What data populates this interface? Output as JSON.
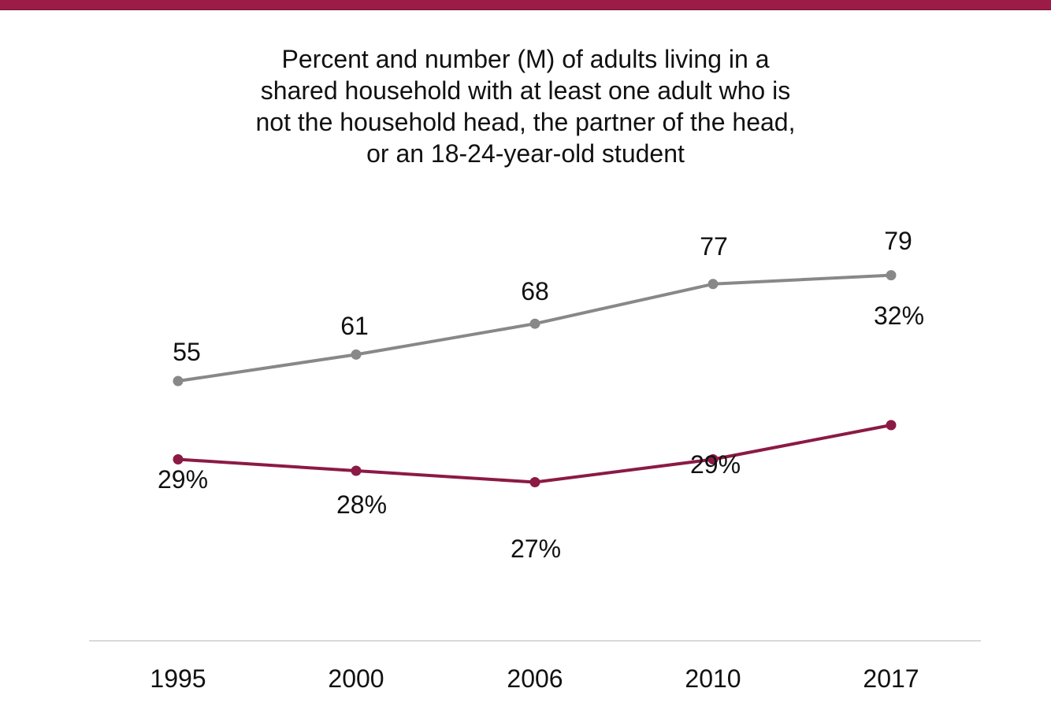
{
  "colors": {
    "accent": "#9c1c47",
    "percent_series": "#8b1a44",
    "number_series": "#888888",
    "axis": "#d9d9d9"
  },
  "chart_data": {
    "type": "line",
    "title_lines": [
      "Percent and number (M) of adults living in a",
      "shared household with at least one adult who is",
      "not the household head, the partner of the head,",
      "or an 18-24-year-old student"
    ],
    "categories": [
      "1995",
      "2000",
      "2006",
      "2010",
      "2017"
    ],
    "series": [
      {
        "values": [
          55,
          61,
          68,
          77,
          79
        ],
        "labels": [
          "55",
          "61",
          "68",
          "77",
          "79"
        ],
        "color": "#888888"
      },
      {
        "values": [
          29,
          28,
          27,
          29,
          32
        ],
        "labels": [
          "29%",
          "28%",
          "27%",
          "29%",
          "32%"
        ],
        "color": "#8b1a44"
      }
    ],
    "grid": false
  }
}
